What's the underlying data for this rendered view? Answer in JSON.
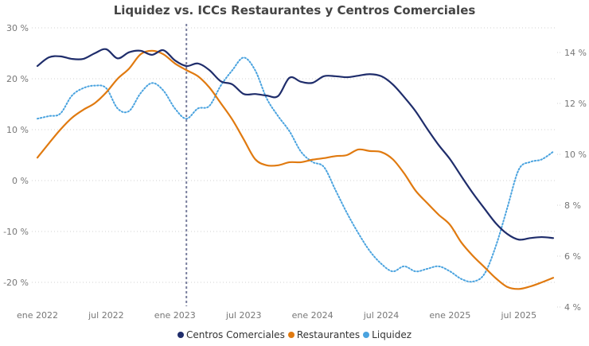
{
  "chart_data": {
    "type": "line",
    "title": "Liquidez vs. ICCs Restaurantes y Centros Comerciales",
    "x": [
      "ene 2022",
      "feb 2022",
      "mar 2022",
      "abr 2022",
      "may 2022",
      "jun 2022",
      "jul 2022",
      "ago 2022",
      "sep 2022",
      "oct 2022",
      "nov 2022",
      "dic 2022",
      "ene 2023",
      "feb 2023",
      "mar 2023",
      "abr 2023",
      "may 2023",
      "jun 2023",
      "jul 2023",
      "ago 2023",
      "sep 2023",
      "oct 2023",
      "nov 2023",
      "dic 2023",
      "ene 2024",
      "feb 2024",
      "mar 2024",
      "abr 2024",
      "may 2024",
      "jun 2024",
      "jul 2024",
      "ago 2024",
      "sep 2024",
      "oct 2024",
      "nov 2024",
      "dic 2024",
      "ene 2025",
      "feb 2025",
      "mar 2025",
      "abr 2025",
      "may 2025",
      "jun 2025",
      "jul 2025",
      "ago 2025",
      "sep 2025",
      "oct 2025"
    ],
    "x_tick_labels": [
      "ene 2022",
      "jul 2022",
      "ene 2023",
      "jul 2023",
      "ene 2024",
      "jul 2024",
      "ene 2025",
      "jul 2025"
    ],
    "y_left": {
      "label": "",
      "ticks": [
        "30 %",
        "20 %",
        "10 %",
        "0 %",
        "-10 %",
        "-20 %"
      ],
      "range": [
        -25,
        30
      ]
    },
    "y_right": {
      "label": "",
      "ticks": [
        "14 %",
        "12 %",
        "10 %",
        "8 %",
        "6 %",
        "4 %"
      ],
      "range": [
        4,
        15
      ]
    },
    "grid": true,
    "legend_position": "bottom-center",
    "reference_line": {
      "x": "feb 2023",
      "style": "dashed"
    },
    "series": [
      {
        "name": "Centros Comerciales",
        "axis": "left",
        "color": "#1F2D6B",
        "style": "solid",
        "values": [
          22.5,
          24.2,
          24.4,
          23.9,
          23.9,
          25.0,
          25.8,
          24.0,
          25.2,
          25.5,
          24.7,
          25.6,
          23.6,
          22.5,
          23.0,
          21.7,
          19.5,
          18.9,
          17.0,
          17.0,
          16.7,
          16.6,
          20.2,
          19.4,
          19.2,
          20.5,
          20.5,
          20.3,
          20.6,
          20.9,
          20.5,
          18.9,
          16.4,
          13.6,
          10.2,
          7.0,
          4.2,
          0.8,
          -2.5,
          -5.5,
          -8.4,
          -10.5,
          -11.6,
          -11.3,
          -11.1,
          -11.3
        ]
      },
      {
        "name": "Restaurantes",
        "axis": "left",
        "color": "#E07A10",
        "style": "solid",
        "values": [
          4.5,
          7.3,
          10.0,
          12.3,
          13.9,
          15.2,
          17.3,
          20.0,
          22.0,
          24.8,
          25.5,
          24.8,
          23.0,
          21.7,
          20.5,
          18.3,
          15.2,
          12.0,
          8.1,
          4.2,
          3.0,
          3.0,
          3.6,
          3.6,
          4.1,
          4.4,
          4.8,
          5.0,
          6.1,
          5.8,
          5.6,
          4.2,
          1.4,
          -2.0,
          -4.4,
          -6.7,
          -8.7,
          -12.2,
          -14.8,
          -17.0,
          -19.2,
          -20.9,
          -21.3,
          -20.8,
          -20.0,
          -19.1
        ]
      },
      {
        "name": "Liquidez",
        "axis": "right",
        "color": "#4AA3DF",
        "style": "dotted",
        "values": [
          11.4,
          11.5,
          11.6,
          12.3,
          12.6,
          12.7,
          12.6,
          11.8,
          11.7,
          12.4,
          12.8,
          12.5,
          11.8,
          11.4,
          11.8,
          11.9,
          12.7,
          13.3,
          13.8,
          13.3,
          12.2,
          11.5,
          10.9,
          10.1,
          9.7,
          9.5,
          8.6,
          7.7,
          6.9,
          6.2,
          5.7,
          5.4,
          5.6,
          5.4,
          5.5,
          5.6,
          5.4,
          5.1,
          5.0,
          5.3,
          6.4,
          7.9,
          9.4,
          9.7,
          9.8,
          10.1
        ]
      }
    ]
  }
}
